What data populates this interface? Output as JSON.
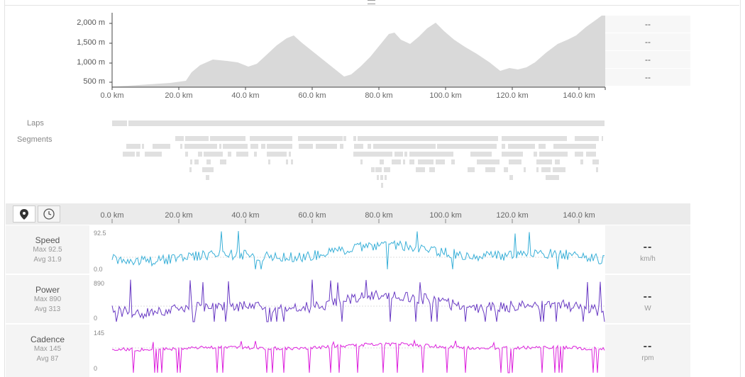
{
  "elevation": {
    "y_ticks": [
      "2,000 m",
      "1,500 m",
      "1,000 m",
      "500 m"
    ],
    "x_ticks": [
      "0.0 km",
      "20.0 km",
      "40.0 km",
      "60.0 km",
      "80.0 km",
      "100.0 km",
      "120.0 km",
      "140.0 km"
    ],
    "fill_color": "#d9d9d9",
    "right_values": [
      "--",
      "--",
      "--",
      "--"
    ]
  },
  "rows": {
    "laps_label": "Laps",
    "segments_label": "Segments"
  },
  "toolbar": {
    "location_icon": "map-pin-icon",
    "time_icon": "clock-icon",
    "x_ticks": [
      "0.0 km",
      "20.0 km",
      "40.0 km",
      "60.0 km",
      "80.0 km",
      "100.0 km",
      "120.0 km",
      "140.0 km"
    ]
  },
  "metrics": [
    {
      "name": "Speed",
      "max": "Max 92.5",
      "avg": "Avg 31.9",
      "top": "92.5",
      "bottom": "0.0",
      "value": "--",
      "unit": "km/h",
      "color": "#3ab0d8"
    },
    {
      "name": "Power",
      "max": "Max 890",
      "avg": "Avg 313",
      "top": "890",
      "bottom": "0",
      "value": "--",
      "unit": "W",
      "color": "#6a3bc4"
    },
    {
      "name": "Cadence",
      "max": "Max 145",
      "avg": "Avg 87",
      "top": "145",
      "bottom": "0",
      "value": "--",
      "unit": "rpm",
      "color": "#dd22dd"
    }
  ]
}
